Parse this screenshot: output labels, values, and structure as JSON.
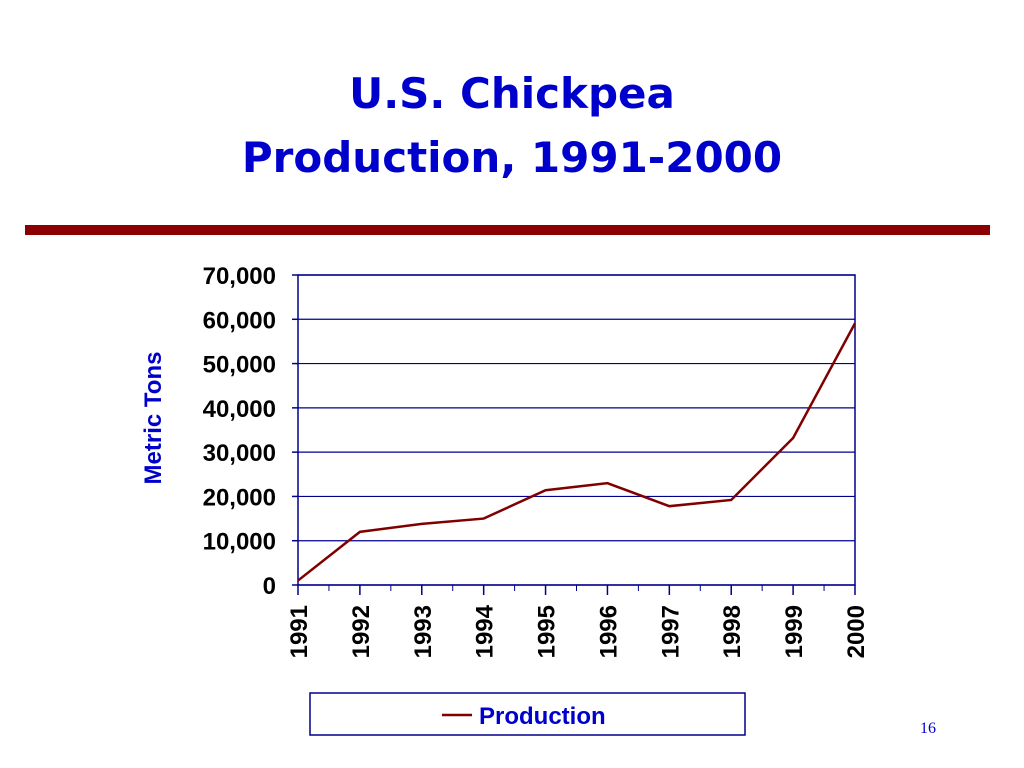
{
  "chart_data": {
    "type": "line",
    "title": "U.S. Chickpea",
    "subtitle": "Production, 1991-2000",
    "y_label": "Metric Tons",
    "x": [
      1991,
      1992,
      1993,
      1994,
      1995,
      1996,
      1997,
      1998,
      1999,
      2000
    ],
    "xlim": [
      1991,
      2000
    ],
    "xticks": [
      1991,
      1992,
      1993,
      1994,
      1995,
      1996,
      1997,
      1998,
      1999,
      2000
    ],
    "ylim": [
      0,
      70000
    ],
    "yticks": [
      0,
      {
        "value": 10000,
        "label": "10,000"
      },
      {
        "value": 20000,
        "label": "20,000"
      },
      {
        "value": 30000,
        "label": "30,000"
      },
      {
        "value": 40000,
        "label": "40,000"
      },
      {
        "value": 50000,
        "label": "50,000"
      },
      {
        "value": 60000,
        "label": "60,000"
      },
      {
        "value": 70000,
        "label": "70,000"
      }
    ],
    "grid": true,
    "legend": "bottom",
    "series": [
      {
        "name": "Production",
        "color": "#800000",
        "values": [
          1000,
          12000,
          13800,
          15000,
          21400,
          23000,
          17800,
          19200,
          33200,
          59100
        ]
      }
    ],
    "page_number": "16"
  }
}
